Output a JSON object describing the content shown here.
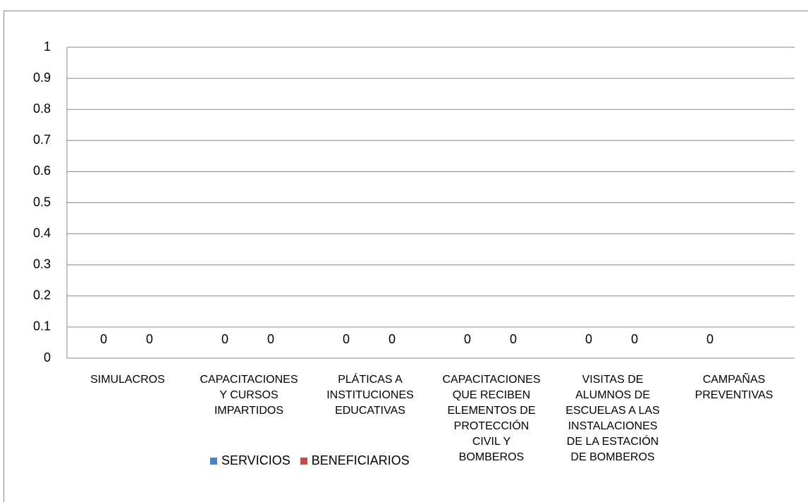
{
  "chart_data": {
    "type": "bar",
    "categories": [
      "SIMULACROS",
      "CAPACITACIONES Y CURSOS IMPARTIDOS",
      "PLÁTICAS A INSTITUCIONES EDUCATIVAS",
      "CAPACITACIONES QUE RECIBEN ELEMENTOS DE PROTECCIÓN CIVIL Y BOMBEROS",
      "VISITAS DE ALUMNOS DE ESCUELAS A LAS INSTALACIONES DE LA ESTACIÓN DE BOMBEROS",
      "CAMPAÑAS PREVENTIVAS"
    ],
    "series": [
      {
        "name": "SERVICIOS",
        "color": "#4f81bd",
        "values": [
          0,
          0,
          0,
          0,
          0,
          0
        ]
      },
      {
        "name": "BENEFICIARIOS",
        "color": "#c0504d",
        "values": [
          0,
          0,
          0,
          0,
          0,
          null
        ]
      }
    ],
    "ylim": [
      0,
      1
    ],
    "yticks": [
      0,
      0.1,
      0.2,
      0.3,
      0.4,
      0.5,
      0.6,
      0.7,
      0.8,
      0.9,
      1
    ],
    "grid": true
  }
}
